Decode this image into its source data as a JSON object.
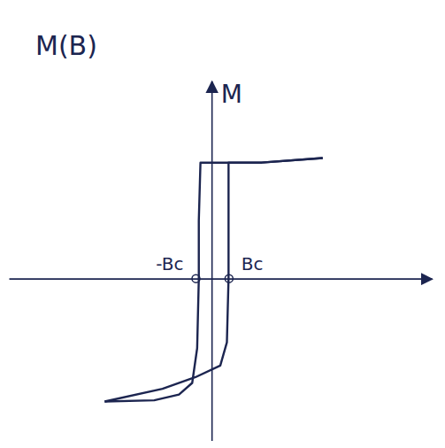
{
  "chart_data": {
    "type": "line",
    "title": "M(B)",
    "y_label": "M",
    "xlim": [
      -12.3,
      13.3
    ],
    "ylim": [
      -1.4,
      1.7
    ],
    "xticks": [
      {
        "value": -1,
        "label": "-Bc"
      },
      {
        "value": 1,
        "label": "Bc"
      }
    ],
    "tick_labels": "x",
    "series": [
      {
        "color": "#1c2550",
        "x": [
          6.7,
          3.0,
          0.0,
          -0.7,
          -0.8,
          -0.8,
          -0.9,
          -1.2,
          -2.0,
          -3.5,
          -6.5
        ],
        "values": [
          1.04,
          1.0,
          1.0,
          1.0,
          0.5,
          0.0,
          -0.6,
          -0.9,
          -1.0,
          -1.05,
          -1.06
        ]
      },
      {
        "color": "#1c2550",
        "x": [
          -6.5,
          -3.0,
          -1.0,
          0.5,
          0.9,
          1.0,
          1.0,
          1.0,
          1.3,
          3.0,
          6.7
        ],
        "values": [
          -1.06,
          -0.95,
          -0.85,
          -0.75,
          -0.55,
          0.0,
          0.5,
          1.0,
          1.0,
          1.0,
          1.04
        ]
      }
    ]
  }
}
